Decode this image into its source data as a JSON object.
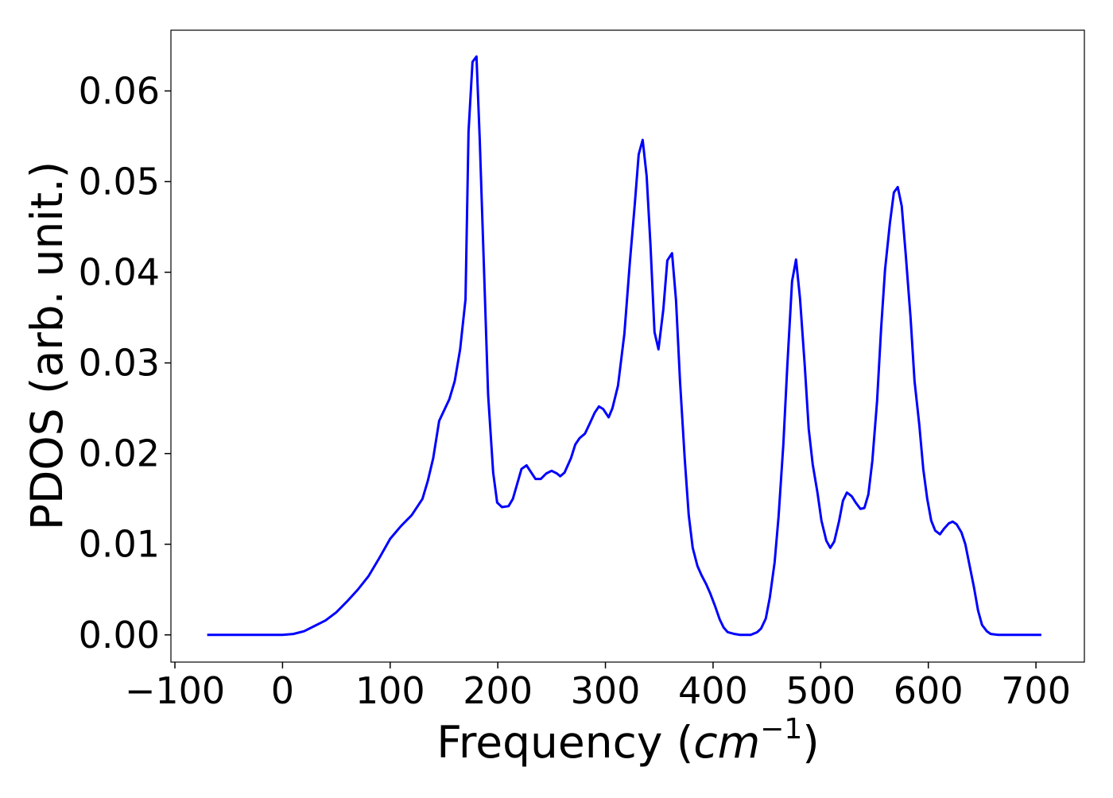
{
  "chart_data": {
    "type": "line",
    "xlabel": [
      "Frequency (",
      "cm",
      "−1",
      ")"
    ],
    "ylabel": "PDOS (arb. unit.)",
    "color": "#0000ff",
    "x": [
      -70,
      -50,
      -30,
      -10,
      0,
      10,
      20,
      30,
      40,
      50,
      60,
      70,
      80,
      90,
      100,
      110,
      120,
      130,
      135,
      140,
      145.5,
      155,
      160,
      165,
      170,
      172.8,
      176.5,
      180.2,
      183.2,
      191,
      195.7,
      199.4,
      203.8,
      210,
      214,
      222,
      226.7,
      235,
      240,
      245,
      250,
      255,
      258,
      262,
      268,
      272,
      276,
      281,
      285,
      290,
      294,
      298,
      303,
      306.5,
      311.7,
      317.6,
      322.7,
      327.2,
      330.9,
      334.6,
      338.3,
      341.9,
      345.6,
      349.3,
      353.8,
      357.5,
      361.9,
      365.6,
      369.3,
      373.7,
      377.4,
      381.1,
      385.5,
      389.2,
      393.6,
      397.3,
      401.8,
      406.2,
      409.9,
      413.6,
      420,
      425,
      430,
      435,
      441,
      444.6,
      449,
      452.7,
      457.2,
      460.9,
      465.3,
      469,
      473.4,
      477.1,
      480.8,
      485.2,
      488.9,
      492.6,
      497,
      500.7,
      505.2,
      508.9,
      512.6,
      517,
      520.7,
      524.4,
      528.8,
      532.5,
      536.9,
      540.6,
      544.3,
      548,
      552.4,
      556.1,
      559.8,
      564.3,
      568,
      571.6,
      575.3,
      579,
      583.5,
      587.2,
      591.6,
      595.3,
      599,
      602.7,
      606.4,
      610.8,
      614.5,
      619,
      622.6,
      626.3,
      630.8,
      634.4,
      638.1,
      642.5,
      646.2,
      649.9,
      654.4,
      658,
      665,
      680,
      695,
      705
    ],
    "values": [
      0,
      0,
      0,
      0,
      0,
      0.0001,
      0.0004,
      0.001,
      0.0016,
      0.0025,
      0.0037,
      0.005,
      0.0065,
      0.0085,
      0.0106,
      0.012,
      0.0132,
      0.015,
      0.017,
      0.0195,
      0.0236,
      0.026,
      0.028,
      0.0315,
      0.037,
      0.0555,
      0.0632,
      0.0638,
      0.0547,
      0.0265,
      0.0179,
      0.0146,
      0.0141,
      0.0142,
      0.015,
      0.0183,
      0.0187,
      0.0172,
      0.0172,
      0.0178,
      0.0181,
      0.0178,
      0.0175,
      0.0179,
      0.0195,
      0.021,
      0.0217,
      0.0222,
      0.0232,
      0.0245,
      0.0252,
      0.0249,
      0.024,
      0.025,
      0.0275,
      0.0332,
      0.0411,
      0.0474,
      0.053,
      0.0546,
      0.0506,
      0.0429,
      0.0334,
      0.0315,
      0.0359,
      0.0413,
      0.0421,
      0.0369,
      0.028,
      0.0194,
      0.0132,
      0.0096,
      0.0076,
      0.0066,
      0.0056,
      0.0046,
      0.0032,
      0.0017,
      0.0008,
      0.0003,
      0.0001,
      0,
      0,
      0,
      0.0003,
      0.0007,
      0.0018,
      0.0041,
      0.008,
      0.0131,
      0.021,
      0.0297,
      0.039,
      0.0414,
      0.0371,
      0.0297,
      0.0227,
      0.0188,
      0.0157,
      0.0126,
      0.0104,
      0.0096,
      0.0103,
      0.0125,
      0.0148,
      0.0157,
      0.0153,
      0.0146,
      0.0139,
      0.014,
      0.0155,
      0.0192,
      0.0258,
      0.0337,
      0.0403,
      0.0454,
      0.0488,
      0.0494,
      0.0473,
      0.042,
      0.035,
      0.028,
      0.0232,
      0.0183,
      0.015,
      0.0126,
      0.0115,
      0.0111,
      0.0117,
      0.0123,
      0.0125,
      0.0122,
      0.0113,
      0.01,
      0.0078,
      0.0052,
      0.0027,
      0.0011,
      0.0004,
      0.0001,
      0,
      0,
      0,
      0
    ],
    "xlim": [
      -103.7,
      745
    ],
    "ylim": [
      -0.003,
      0.0667
    ],
    "xticks": [
      {
        "value": -100,
        "label": "−100"
      },
      0,
      100,
      200,
      300,
      400,
      500,
      600,
      700
    ],
    "yticks": [
      {
        "value": 0,
        "label": "0.00"
      },
      0.01,
      0.02,
      0.03,
      0.04,
      0.05,
      0.06
    ]
  }
}
